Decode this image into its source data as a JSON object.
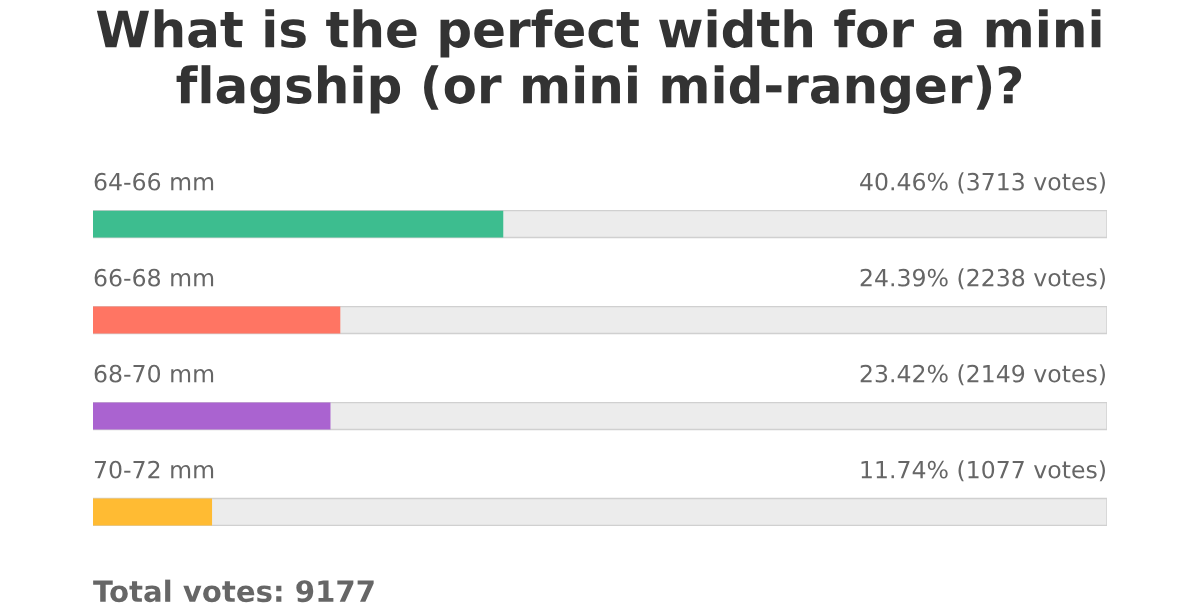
{
  "chart_data": {
    "type": "bar",
    "orientation": "horizontal",
    "title": "What is the perfect width for a mini flagship (or mini mid-ranger)?",
    "categories": [
      "64-66 mm",
      "66-68 mm",
      "68-70 mm",
      "70-72 mm"
    ],
    "values": [
      40.46,
      24.39,
      23.42,
      11.74
    ],
    "colors": [
      "#3dbd8f",
      "#ff7563",
      "#aa63d0",
      "#ffbb33"
    ],
    "value_labels": [
      "40.46% (3713 votes)",
      "24.39% (2238 votes)",
      "23.42% (2149 votes)",
      "11.74% (1077 votes)"
    ],
    "xlim": [
      0,
      100
    ],
    "tick_labels": false,
    "annotations": [
      "Total votes: 9177"
    ]
  }
}
